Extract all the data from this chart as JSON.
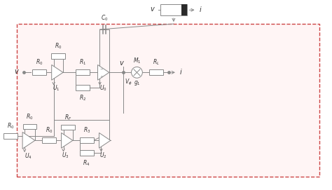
{
  "bg_color": "#ffffff",
  "box_color": "#cc4444",
  "line_color": "#888888",
  "text_color": "#333333",
  "figsize": [
    4.74,
    2.71
  ],
  "dpi": 100
}
